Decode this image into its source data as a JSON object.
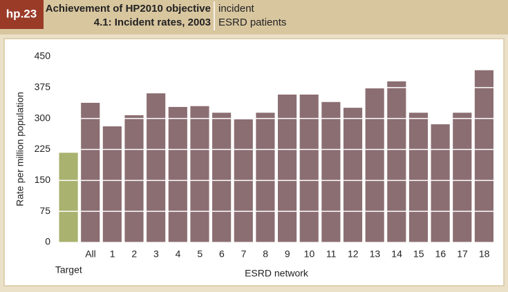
{
  "chart_data": {
    "type": "bar",
    "label": "hp.23",
    "title": [
      "Achievement of HP2010 objective",
      "4.1: Incident rates, 2003"
    ],
    "subtitle": [
      "incident",
      "ESRD patients"
    ],
    "x_label": "ESRD network",
    "y_label": "Rate per million population",
    "categories": [
      "Target",
      "All",
      "1",
      "2",
      "3",
      "4",
      "5",
      "6",
      "7",
      "8",
      "9",
      "10",
      "11",
      "12",
      "13",
      "14",
      "15",
      "16",
      "17",
      "18"
    ],
    "values": [
      217,
      338,
      281,
      308,
      361,
      328,
      330,
      314,
      298,
      314,
      358,
      358,
      340,
      326,
      373,
      390,
      314,
      286,
      314,
      417
    ],
    "colors": [
      "#a9b26e",
      "#8b6e72",
      "#8b6e72",
      "#8b6e72",
      "#8b6e72",
      "#8b6e72",
      "#8b6e72",
      "#8b6e72",
      "#8b6e72",
      "#8b6e72",
      "#8b6e72",
      "#8b6e72",
      "#8b6e72",
      "#8b6e72",
      "#8b6e72",
      "#8b6e72",
      "#8b6e72",
      "#8b6e72",
      "#8b6e72",
      "#8b6e72"
    ],
    "ylim": [
      0,
      450
    ],
    "yticks": [
      0,
      75,
      150,
      225,
      300,
      375,
      450
    ],
    "grid": true
  }
}
